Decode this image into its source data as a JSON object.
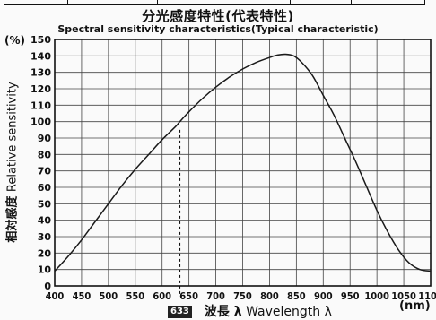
{
  "chart_data": {
    "type": "line",
    "title": "分光感度特性(代表特性)",
    "subtitle": "Spectral sensitivity characteristics(Typical characteristic)",
    "xlabel_jp": "波長 λ",
    "xlabel_en": "Wavelength λ",
    "x_unit": "(nm)",
    "ylabel_jp": "相対感度",
    "ylabel_en": "Relative sensitivity",
    "y_unit": "(%)",
    "xlim": [
      400,
      1100
    ],
    "ylim": [
      0,
      150
    ],
    "x_ticks": [
      400,
      450,
      500,
      550,
      600,
      650,
      700,
      750,
      800,
      850,
      900,
      950,
      1000,
      1050,
      1100
    ],
    "y_ticks": [
      0,
      10,
      20,
      30,
      40,
      50,
      60,
      70,
      80,
      90,
      100,
      110,
      120,
      130,
      140,
      150
    ],
    "grid": true,
    "annotation": {
      "x": 633,
      "label": "633",
      "style": "dashed-vertical"
    },
    "series": [
      {
        "color": "#1a1a1a",
        "x": [
          400,
          425,
          450,
          475,
          500,
          525,
          550,
          575,
          600,
          625,
          633,
          650,
          675,
          700,
          725,
          750,
          775,
          800,
          815,
          830,
          845,
          860,
          880,
          900,
          920,
          940,
          960,
          980,
          1000,
          1020,
          1040,
          1060,
          1080,
          1100
        ],
        "y": [
          9,
          18,
          28,
          39,
          50,
          61,
          71,
          80,
          89,
          97,
          100,
          106,
          114,
          121,
          127,
          132,
          136,
          139,
          140.5,
          141,
          140,
          136,
          128,
          116,
          104,
          90,
          76,
          61,
          46,
          33,
          22,
          14,
          10,
          9
        ]
      }
    ]
  }
}
